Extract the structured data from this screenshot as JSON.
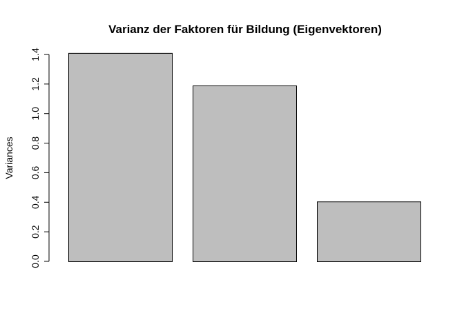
{
  "chart_data": {
    "type": "bar",
    "title": "Varianz der Faktoren für Bildung (Eigenvektoren)",
    "xlabel": "",
    "ylabel": "Variances",
    "categories": [
      "",
      "",
      ""
    ],
    "values": [
      1.41,
      1.19,
      0.405
    ],
    "ylim": [
      0,
      1.4
    ],
    "yticks": [
      0.0,
      0.2,
      0.4,
      0.6,
      0.8,
      1.0,
      1.2,
      1.4
    ],
    "ytick_labels": [
      "0.0",
      "0.2",
      "0.4",
      "0.6",
      "0.8",
      "1.0",
      "1.2",
      "1.4"
    ],
    "grid": false,
    "bar_color": "#bebebe",
    "edge_color": "#000000"
  }
}
